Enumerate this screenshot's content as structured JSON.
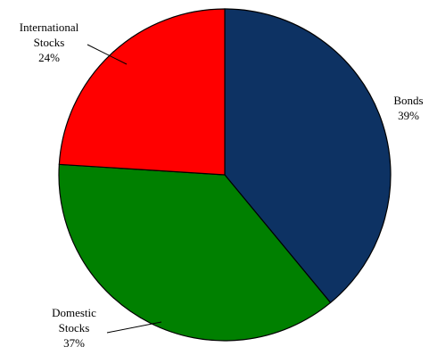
{
  "chart_data": {
    "type": "pie",
    "start_angle_deg": 0,
    "direction": "clockwise",
    "legend": "none",
    "slices": [
      {
        "name_lines": [
          "Bonds"
        ],
        "value": 39,
        "value_label": "39%",
        "color": "#0d3263"
      },
      {
        "name_lines": [
          "Domestic",
          "Stocks"
        ],
        "value": 37,
        "value_label": "37%",
        "color": "#008000"
      },
      {
        "name_lines": [
          "International",
          "Stocks"
        ],
        "value": 24,
        "value_label": "24%",
        "color": "#ff0000"
      }
    ]
  }
}
